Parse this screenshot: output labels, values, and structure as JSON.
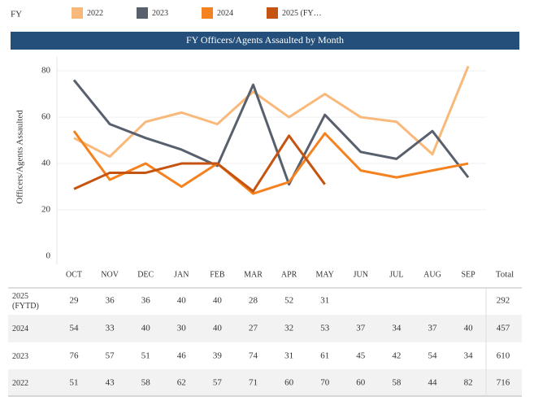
{
  "chart_data": {
    "type": "line",
    "title": "FY Officers/Agents Assaulted by Month",
    "legend_title": "FY",
    "y_label": "Officers/Agents Assaulted",
    "categories": [
      "OCT",
      "NOV",
      "DEC",
      "JAN",
      "FEB",
      "MAR",
      "APR",
      "MAY",
      "JUN",
      "JUL",
      "AUG",
      "SEP"
    ],
    "total_label": "Total",
    "ylim": [
      0,
      86
    ],
    "yticks": [
      0,
      20,
      40,
      60,
      80
    ],
    "grid": true,
    "series": [
      {
        "name": "2022",
        "color": "#f8b97a",
        "values": [
          51,
          43,
          58,
          62,
          57,
          71,
          60,
          70,
          60,
          58,
          44,
          82
        ],
        "total": 716
      },
      {
        "name": "2023",
        "color": "#59606d",
        "values": [
          76,
          57,
          51,
          46,
          39,
          74,
          31,
          61,
          45,
          42,
          54,
          34
        ],
        "total": 610
      },
      {
        "name": "2024",
        "color": "#f5821f",
        "values": [
          54,
          33,
          40,
          30,
          40,
          27,
          32,
          53,
          37,
          34,
          37,
          40
        ],
        "total": 457
      },
      {
        "name": "2025 (FYTD)",
        "color": "#c4540f",
        "values": [
          29,
          36,
          36,
          40,
          40,
          28,
          52,
          31,
          null,
          null,
          null,
          null
        ],
        "total": 292
      }
    ]
  }
}
